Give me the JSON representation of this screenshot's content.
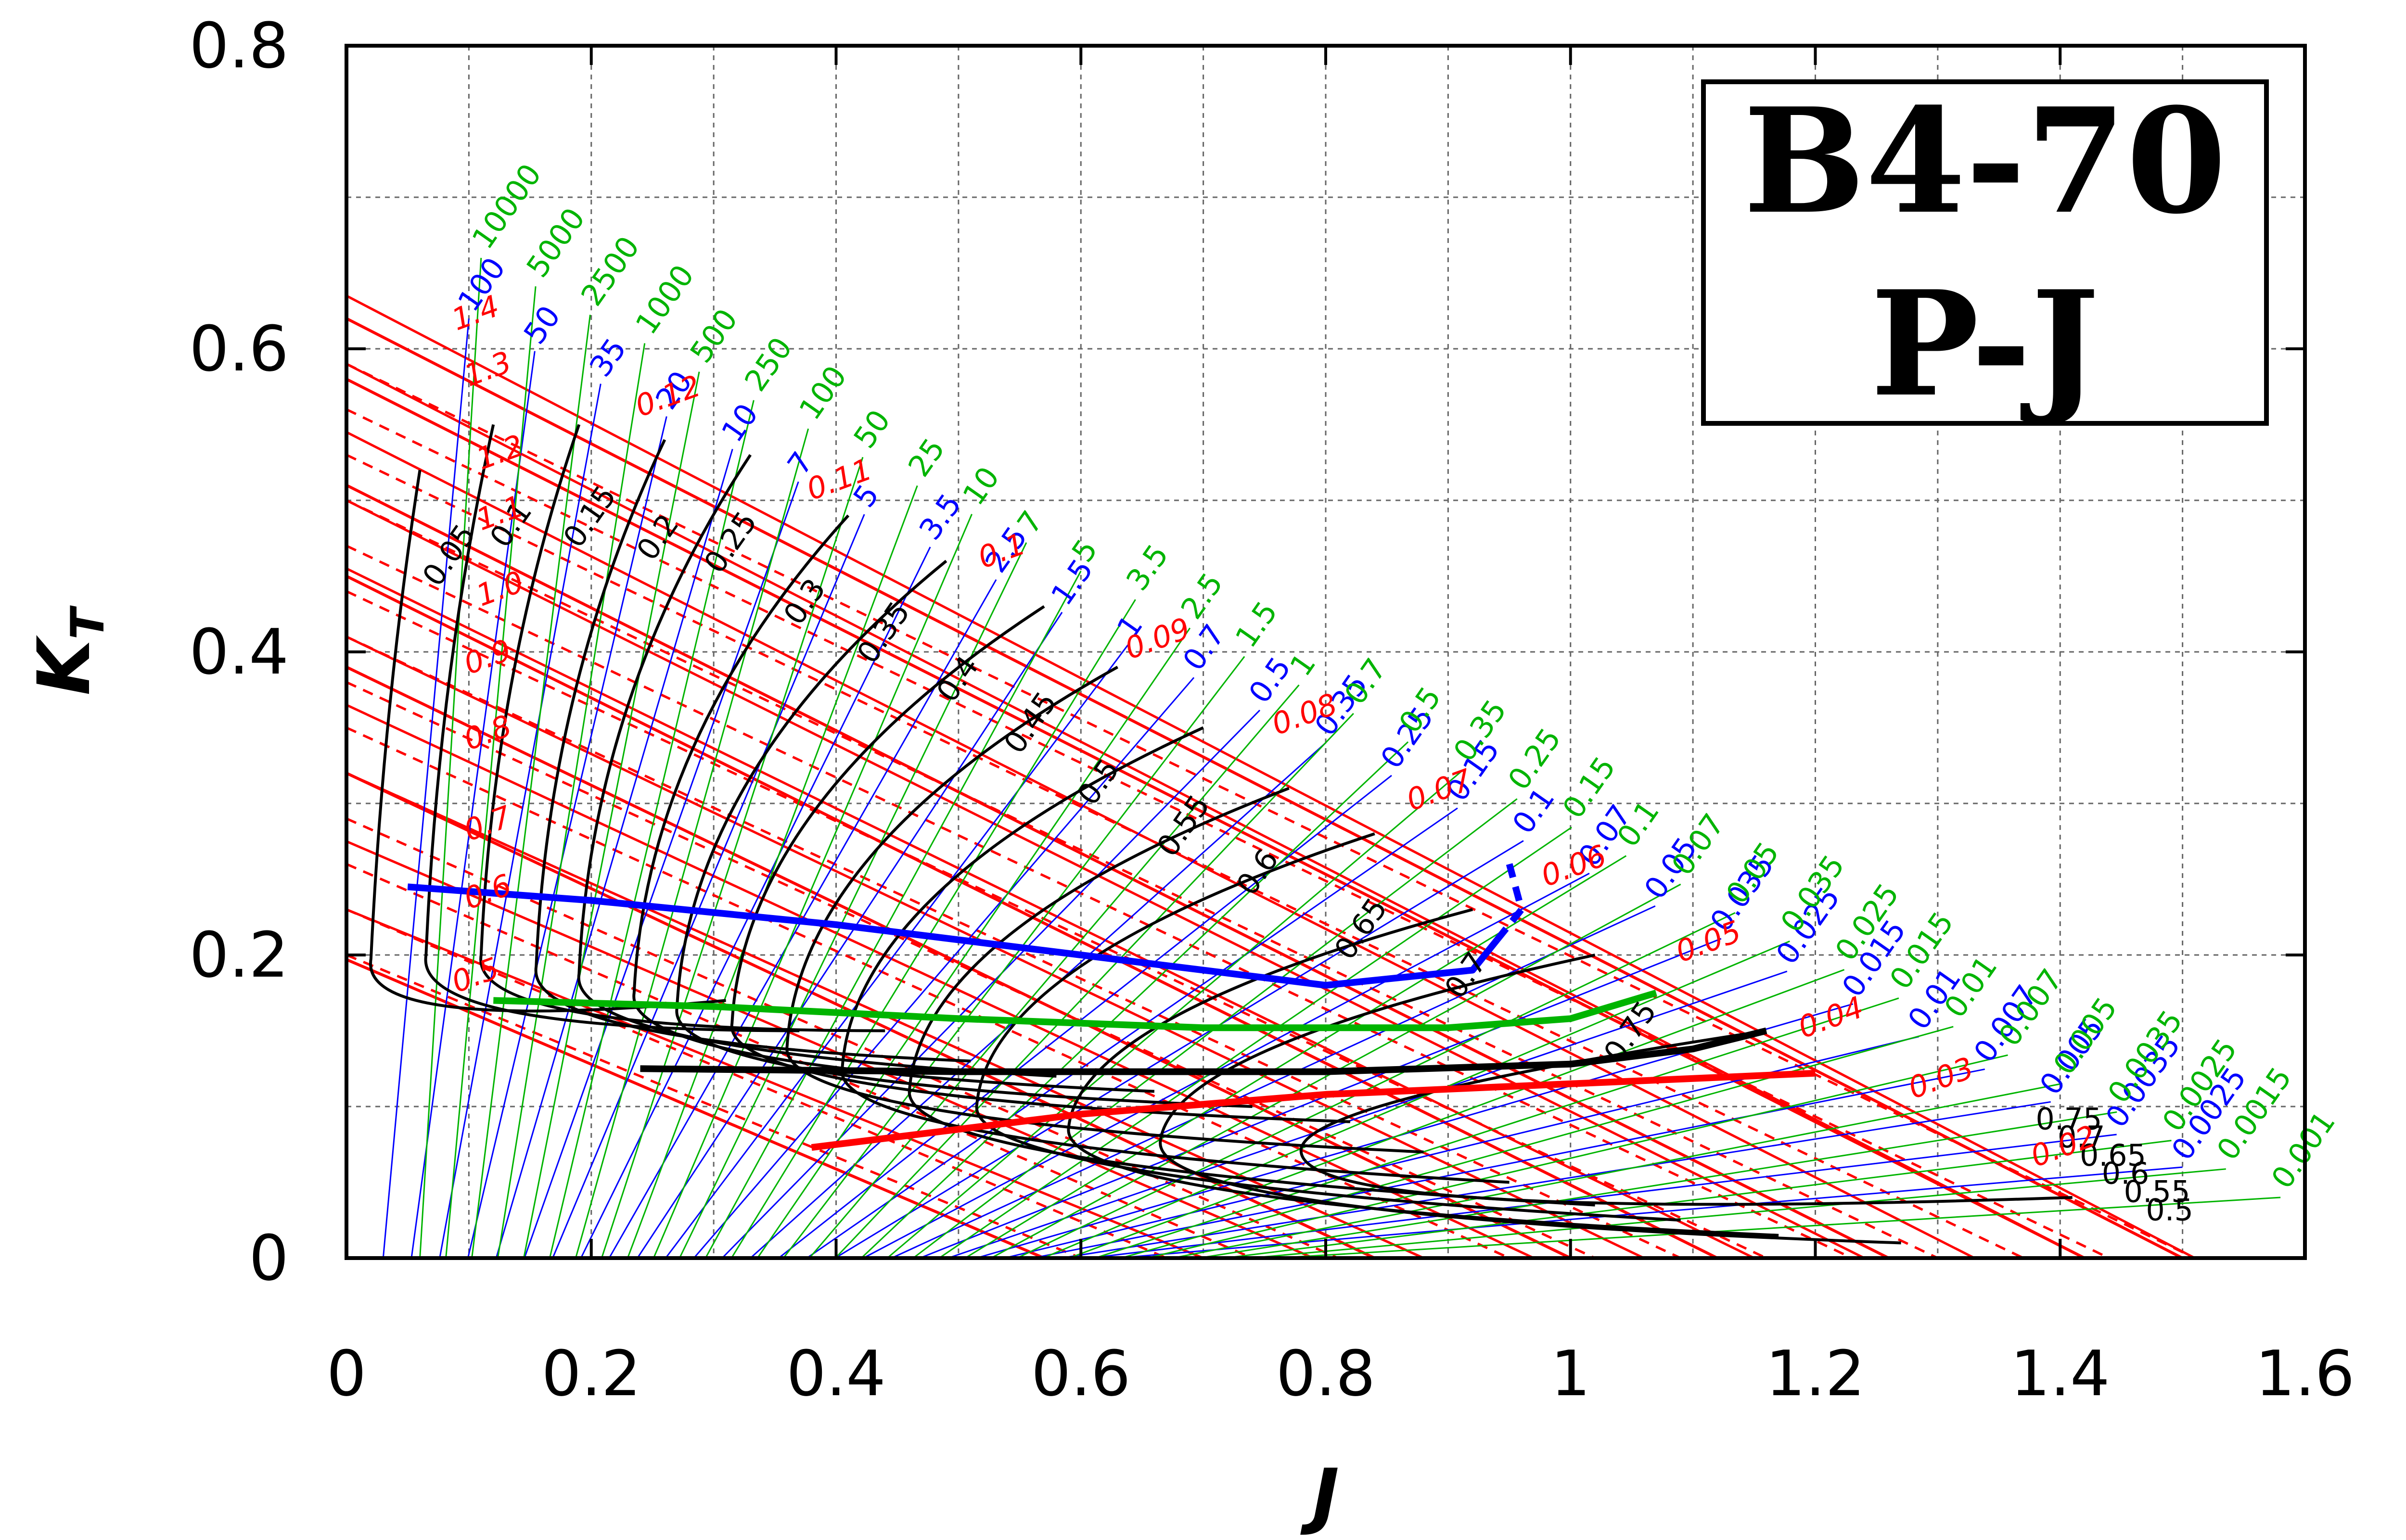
{
  "chart_data": {
    "type": "line",
    "title": "",
    "xlabel": "J",
    "ylabel": "K",
    "ylabel_subscript": "T",
    "xlim": [
      0,
      1.6
    ],
    "ylim": [
      0,
      0.8
    ],
    "x_ticks": [
      "0",
      "0.2",
      "0.4",
      "0.6",
      "0.8",
      "1",
      "1.2",
      "1.4",
      "1.6"
    ],
    "y_ticks": [
      "0",
      "0.2",
      "0.4",
      "0.6",
      "0.8"
    ],
    "grid": true,
    "legend_box": {
      "line1": "B4-70",
      "line2": "P-J",
      "placement": "top-right"
    },
    "colors": {
      "efficiency": "#000000",
      "pitch": "#ff0000",
      "coef_blue": "#0000ff",
      "coef_green": "#00b400"
    },
    "pitch_lines": {
      "color": "#ff0000",
      "style": "solid",
      "kt0": [
        0.197,
        0.32,
        0.39,
        0.45,
        0.51,
        0.58,
        0.62
      ],
      "j0": [
        0.57,
        0.84,
        1.0,
        1.12,
        1.26,
        1.42,
        1.5
      ]
    },
    "pitch_labels": {
      "color": "#ff0000",
      "items": [
        {
          "text": "1.4",
          "j": 0.09,
          "kt": 0.612
        },
        {
          "text": "1.3",
          "j": 0.1,
          "kt": 0.575
        },
        {
          "text": "1.2",
          "j": 0.11,
          "kt": 0.52
        },
        {
          "text": "1.1",
          "j": 0.11,
          "kt": 0.48
        },
        {
          "text": "1.0",
          "j": 0.11,
          "kt": 0.43
        },
        {
          "text": "0.9",
          "j": 0.1,
          "kt": 0.385
        },
        {
          "text": "0.8",
          "j": 0.1,
          "kt": 0.335
        },
        {
          "text": "0.7",
          "j": 0.1,
          "kt": 0.275
        },
        {
          "text": "0.6",
          "j": 0.1,
          "kt": 0.23
        },
        {
          "text": "0.5",
          "j": 0.09,
          "kt": 0.175
        },
        {
          "text": "0.12",
          "j": 0.24,
          "kt": 0.555
        },
        {
          "text": "0.11",
          "j": 0.38,
          "kt": 0.5
        },
        {
          "text": "0.1",
          "j": 0.52,
          "kt": 0.455
        },
        {
          "text": "0.09",
          "j": 0.64,
          "kt": 0.395
        },
        {
          "text": "0.08",
          "j": 0.76,
          "kt": 0.345
        },
        {
          "text": "0.07",
          "j": 0.87,
          "kt": 0.295
        },
        {
          "text": "0.06",
          "j": 0.98,
          "kt": 0.245
        },
        {
          "text": "0.05",
          "j": 1.09,
          "kt": 0.195
        },
        {
          "text": "0.04",
          "j": 1.19,
          "kt": 0.145
        },
        {
          "text": "0.03",
          "j": 1.28,
          "kt": 0.105
        },
        {
          "text": "0.02",
          "j": 1.38,
          "kt": 0.06
        }
      ]
    },
    "efficiency_curves": {
      "color": "#000000",
      "items": [
        {
          "label": "0.05",
          "kt_lo": 0.19,
          "kt_hi": 0.52,
          "j_lo": 0.03,
          "j_hi": 0.06
        },
        {
          "label": "0.1",
          "kt_lo": 0.17,
          "kt_hi": 0.55,
          "j_lo": 0.08,
          "j_hi": 0.12
        },
        {
          "label": "0.15",
          "kt_lo": 0.17,
          "kt_hi": 0.55,
          "j_lo": 0.13,
          "j_hi": 0.19
        },
        {
          "label": "0.2",
          "kt_lo": 0.15,
          "kt_hi": 0.54,
          "j_lo": 0.18,
          "j_hi": 0.26
        },
        {
          "label": "0.25",
          "kt_lo": 0.14,
          "kt_hi": 0.53,
          "j_lo": 0.22,
          "j_hi": 0.33
        },
        {
          "label": "0.3",
          "kt_lo": 0.13,
          "kt_hi": 0.49,
          "j_lo": 0.27,
          "j_hi": 0.41
        },
        {
          "label": "0.35",
          "kt_lo": 0.12,
          "kt_hi": 0.46,
          "j_lo": 0.31,
          "j_hi": 0.49
        },
        {
          "label": "0.4",
          "kt_lo": 0.11,
          "kt_hi": 0.43,
          "j_lo": 0.36,
          "j_hi": 0.57
        },
        {
          "label": "0.45",
          "kt_lo": 0.09,
          "kt_hi": 0.39,
          "j_lo": 0.41,
          "j_hi": 0.63
        },
        {
          "label": "0.5",
          "kt_lo": 0.07,
          "kt_hi": 0.35,
          "j_lo": 0.46,
          "j_hi": 0.7
        },
        {
          "label": "0.55",
          "kt_lo": 0.055,
          "kt_hi": 0.31,
          "j_lo": 0.52,
          "j_hi": 0.77
        },
        {
          "label": "0.6",
          "kt_lo": 0.045,
          "kt_hi": 0.28,
          "j_lo": 0.58,
          "j_hi": 0.84
        },
        {
          "label": "0.65",
          "kt_lo": 0.035,
          "kt_hi": 0.23,
          "j_lo": 0.66,
          "j_hi": 0.92
        },
        {
          "label": "0.7",
          "kt_lo": 0.03,
          "kt_hi": 0.2,
          "j_lo": 0.74,
          "j_hi": 1.02
        },
        {
          "label": "0.75",
          "kt_lo": 0.06,
          "kt_hi": 0.15,
          "j_lo": 0.86,
          "j_hi": 1.16
        }
      ]
    },
    "efficiency_tail_labels": [
      "0.75",
      "0.7",
      "0.65",
      "0.6",
      "0.55",
      "0.5"
    ],
    "coefficient_blue": {
      "color": "#0000ff",
      "labels": [
        "100",
        "50",
        "35",
        "20",
        "10",
        "7",
        "5",
        "3.5",
        "2.5",
        "1.5",
        "1",
        "0.7",
        "0.5",
        "0.35",
        "0.25",
        "0.15",
        "0.1",
        "0.07",
        "0.05",
        "0.035",
        "0.025",
        "0.015",
        "0.01",
        "0.007",
        "0.005",
        "0.0035",
        "0.0025"
      ]
    },
    "coefficient_green": {
      "color": "#00b400",
      "labels": [
        "10000",
        "5000",
        "2500",
        "1000",
        "500",
        "250",
        "100",
        "50",
        "25",
        "10",
        "7",
        "5",
        "3.5",
        "2.5",
        "1.5",
        "1",
        "0.7",
        "0.5",
        "0.35",
        "0.25",
        "0.15",
        "0.1",
        "0.07",
        "0.05",
        "0.035",
        "0.025",
        "0.015",
        "0.01",
        "0.007",
        "0.005",
        "0.0035",
        "0.0025",
        "0.0015",
        "0.001"
      ]
    },
    "optimum_curves": [
      {
        "color": "#0000ff",
        "points": [
          [
            0.05,
            0.245
          ],
          [
            0.2,
            0.236
          ],
          [
            0.4,
            0.22
          ],
          [
            0.6,
            0.2
          ],
          [
            0.8,
            0.18
          ],
          [
            0.92,
            0.19
          ],
          [
            0.94,
            0.21
          ]
        ],
        "dashed_end": [
          [
            0.94,
            0.21
          ],
          [
            0.96,
            0.23
          ],
          [
            0.95,
            0.26
          ]
        ]
      },
      {
        "color": "#00b400",
        "points": [
          [
            0.12,
            0.17
          ],
          [
            0.3,
            0.166
          ],
          [
            0.5,
            0.158
          ],
          [
            0.7,
            0.152
          ],
          [
            0.9,
            0.152
          ],
          [
            1.0,
            0.158
          ],
          [
            1.07,
            0.175
          ]
        ]
      },
      {
        "color": "#000000",
        "points": [
          [
            0.24,
            0.125
          ],
          [
            0.5,
            0.123
          ],
          [
            0.8,
            0.123
          ],
          [
            1.0,
            0.128
          ],
          [
            1.1,
            0.138
          ],
          [
            1.16,
            0.15
          ]
        ]
      },
      {
        "color": "#ff0000",
        "points": [
          [
            0.38,
            0.073
          ],
          [
            0.6,
            0.095
          ],
          [
            0.8,
            0.108
          ],
          [
            1.0,
            0.115
          ],
          [
            1.2,
            0.122
          ]
        ]
      }
    ]
  }
}
